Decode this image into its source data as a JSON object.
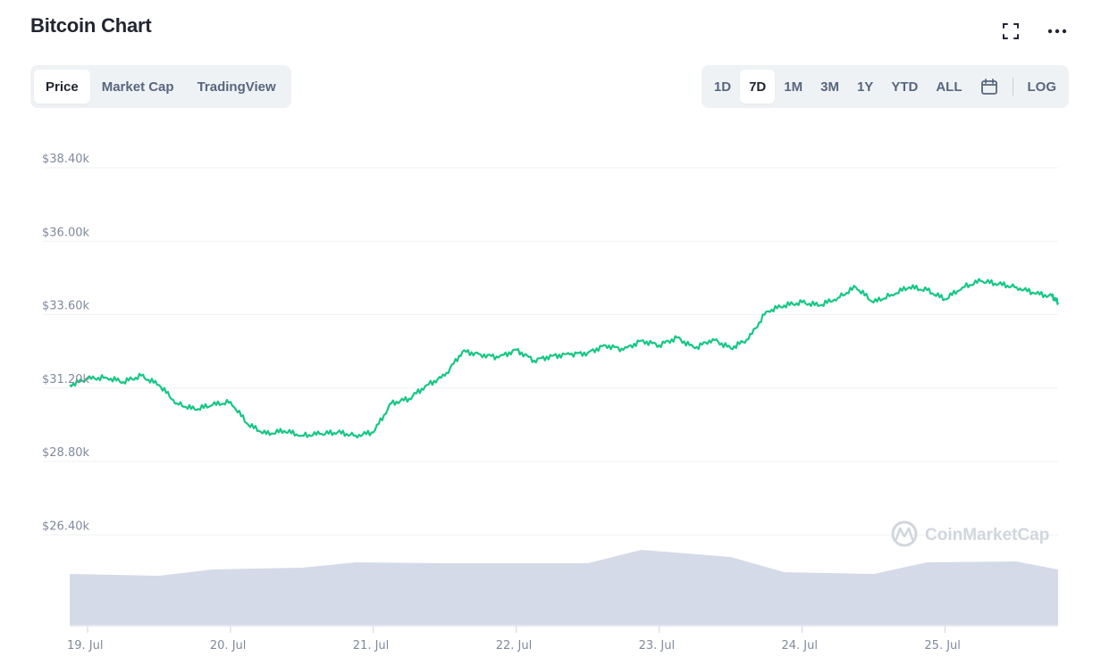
{
  "header": {
    "title": "Bitcoin Chart",
    "fullscreen_icon": "expand-icon",
    "more_icon": "more-horizontal-icon"
  },
  "tabs_left": [
    {
      "label": "Price",
      "active": true
    },
    {
      "label": "Market Cap",
      "active": false
    },
    {
      "label": "TradingView",
      "active": false
    }
  ],
  "tabs_right": [
    {
      "label": "1D",
      "active": false
    },
    {
      "label": "7D",
      "active": true
    },
    {
      "label": "1M",
      "active": false
    },
    {
      "label": "3M",
      "active": false
    },
    {
      "label": "1Y",
      "active": false
    },
    {
      "label": "YTD",
      "active": false
    },
    {
      "label": "ALL",
      "active": false
    }
  ],
  "calendar_icon": "calendar-icon",
  "log_label": "LOG",
  "watermark": {
    "text": "CoinMarketCap",
    "icon": "coinmarketcap-logo-icon"
  },
  "colors": {
    "line": "#16c784",
    "volume": "#cfd6e4",
    "grid": "#eff2f5",
    "axis_text": "#808a9d"
  },
  "chart_data": {
    "type": "line",
    "title": "Bitcoin Chart",
    "ylim": [
      24000,
      40800
    ],
    "y_ticks": [
      26400,
      28800,
      31200,
      33600,
      36000,
      38400
    ],
    "y_tick_labels": [
      "$26.40k",
      "$28.80k",
      "$31.20k",
      "$33.60k",
      "$36.00k",
      "$38.40k"
    ],
    "x_range": [
      "2021-07-18T21:00",
      "2021-07-25T19:00"
    ],
    "x_ticks": [
      "2021-07-19",
      "2021-07-20",
      "2021-07-21",
      "2021-07-22",
      "2021-07-23",
      "2021-07-24",
      "2021-07-25"
    ],
    "x_tick_labels": [
      "19. Jul",
      "20. Jul",
      "21. Jul",
      "22. Jul",
      "23. Jul",
      "24. Jul",
      "25. Jul"
    ],
    "grid": true,
    "series": [
      {
        "type": "line",
        "x": [
          "2021-07-18T21:00",
          "2021-07-19T00:00",
          "2021-07-19T03:00",
          "2021-07-19T06:00",
          "2021-07-19T09:00",
          "2021-07-19T12:00",
          "2021-07-19T15:00",
          "2021-07-19T18:00",
          "2021-07-19T21:00",
          "2021-07-20T00:00",
          "2021-07-20T03:00",
          "2021-07-20T06:00",
          "2021-07-20T09:00",
          "2021-07-20T12:00",
          "2021-07-20T15:00",
          "2021-07-20T18:00",
          "2021-07-20T21:00",
          "2021-07-21T00:00",
          "2021-07-21T03:00",
          "2021-07-21T06:00",
          "2021-07-21T09:00",
          "2021-07-21T12:00",
          "2021-07-21T15:00",
          "2021-07-21T18:00",
          "2021-07-21T21:00",
          "2021-07-22T00:00",
          "2021-07-22T03:00",
          "2021-07-22T06:00",
          "2021-07-22T09:00",
          "2021-07-22T12:00",
          "2021-07-22T15:00",
          "2021-07-22T18:00",
          "2021-07-22T21:00",
          "2021-07-23T00:00",
          "2021-07-23T03:00",
          "2021-07-23T06:00",
          "2021-07-23T09:00",
          "2021-07-23T12:00",
          "2021-07-23T15:00",
          "2021-07-23T18:00",
          "2021-07-23T21:00",
          "2021-07-24T00:00",
          "2021-07-24T03:00",
          "2021-07-24T06:00",
          "2021-07-24T09:00",
          "2021-07-24T12:00",
          "2021-07-24T15:00",
          "2021-07-24T18:00",
          "2021-07-24T21:00",
          "2021-07-25T00:00",
          "2021-07-25T03:00",
          "2021-07-25T06:00",
          "2021-07-25T09:00",
          "2021-07-25T12:00",
          "2021-07-25T15:00",
          "2021-07-25T18:00",
          "2021-07-25T19:00"
        ],
        "values": [
          31300,
          31500,
          31550,
          31400,
          31600,
          31300,
          30700,
          30500,
          30650,
          30750,
          30000,
          29700,
          29800,
          29650,
          29700,
          29750,
          29650,
          29750,
          30700,
          30850,
          31300,
          31600,
          32400,
          32300,
          32200,
          32450,
          32100,
          32250,
          32300,
          32350,
          32600,
          32450,
          32750,
          32600,
          32850,
          32500,
          32800,
          32500,
          32800,
          33700,
          33900,
          34000,
          33900,
          34150,
          34500,
          34000,
          34250,
          34500,
          34400,
          34100,
          34500,
          34700,
          34600,
          34500,
          34300,
          34200,
          34000
        ]
      },
      {
        "type": "volume",
        "x": [
          "2021-07-18T21:00",
          "2021-07-19T12:00",
          "2021-07-19T21:00",
          "2021-07-20T12:00",
          "2021-07-20T21:00",
          "2021-07-21T12:00",
          "2021-07-21T21:00",
          "2021-07-22T12:00",
          "2021-07-22T21:00",
          "2021-07-23T12:00",
          "2021-07-23T21:00",
          "2021-07-24T12:00",
          "2021-07-24T21:00",
          "2021-07-25T12:00",
          "2021-07-25T19:00"
        ],
        "values": [
          0.57,
          0.55,
          0.62,
          0.64,
          0.7,
          0.69,
          0.69,
          0.69,
          0.84,
          0.76,
          0.59,
          0.57,
          0.7,
          0.71,
          0.62
        ]
      }
    ]
  }
}
